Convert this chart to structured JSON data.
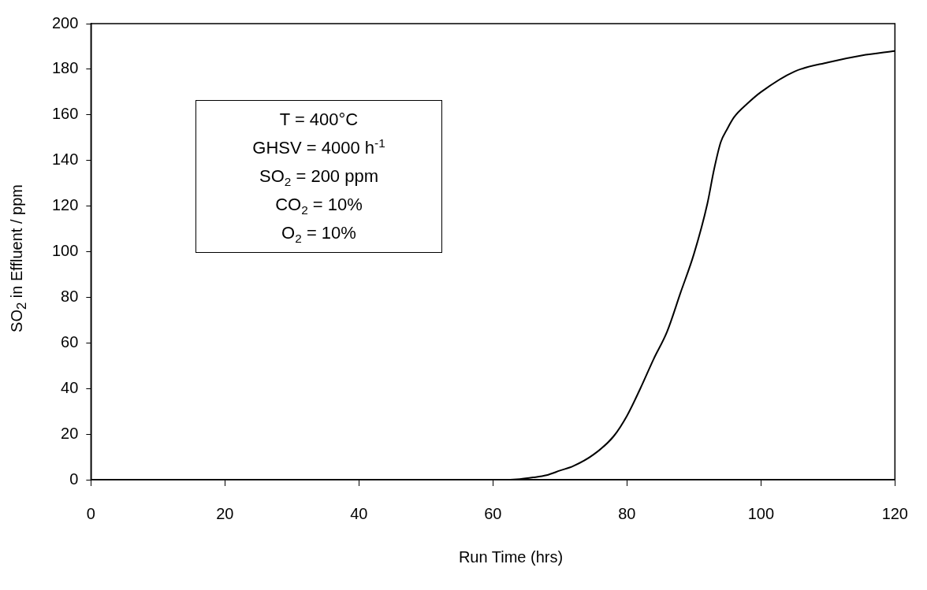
{
  "chart_data": {
    "type": "line",
    "xlabel": "Run Time (hrs)",
    "ylabel": "SO$_{2}$ in Effluent / ppm",
    "annotations": [
      "T = 400°C",
      "GHSV = 4000 h$^{-1}$",
      "SO$_{2}$ = 200 ppm",
      "CO$_{2}$ = 10%",
      "O$_{2}$ = 10%"
    ],
    "series": [
      {
        "color": "#000000",
        "x": [
          0,
          61,
          64,
          66,
          68,
          70,
          72,
          75,
          78,
          80,
          82,
          84,
          86,
          88,
          90,
          92,
          93,
          94,
          95,
          96,
          98,
          100,
          105,
          110,
          115,
          120
        ],
        "values": [
          0,
          0,
          0.3,
          1,
          2,
          4,
          6,
          11,
          19,
          28,
          40,
          53,
          65,
          82,
          99,
          121,
          136,
          148,
          154,
          159,
          165,
          170,
          179,
          183,
          186,
          188
        ]
      }
    ],
    "xlim": [
      0,
      120
    ],
    "xticks": [
      0,
      20,
      40,
      60,
      80,
      100,
      120
    ],
    "ylim": [
      0,
      200
    ],
    "yticks": [
      0,
      20,
      40,
      60,
      80,
      100,
      120,
      140,
      160,
      180,
      200
    ],
    "grid": false,
    "legend": false,
    "marker": "none",
    "line_style": "solid"
  }
}
